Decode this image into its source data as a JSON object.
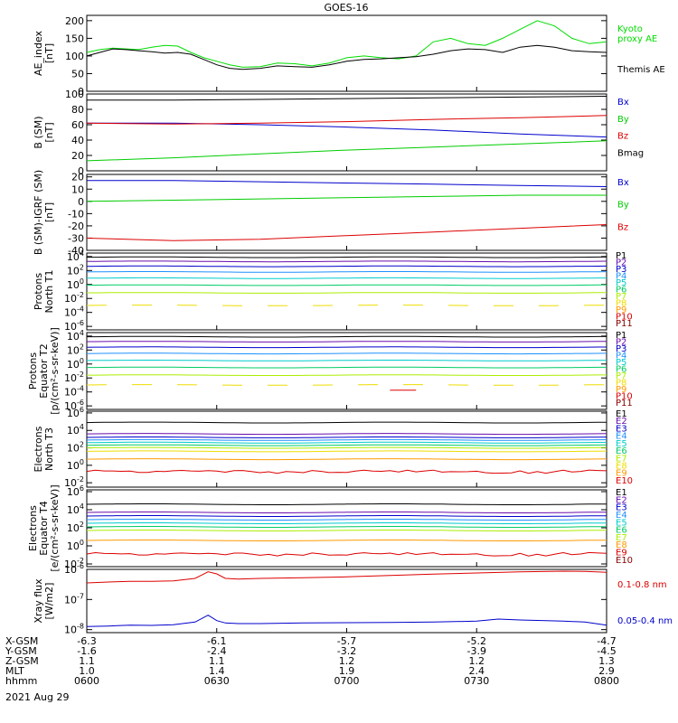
{
  "title": "GOES-16",
  "date_label": "2021 Aug 29",
  "orbit_rows": [
    {
      "name": "X-GSM",
      "values": [
        "-6.3",
        "-6.1",
        "-5.7",
        "-5.2",
        "-4.7"
      ]
    },
    {
      "name": "Y-GSM",
      "values": [
        "-1.6",
        "-2.4",
        "-3.2",
        "-3.9",
        "-4.5"
      ]
    },
    {
      "name": "Z-GSM",
      "values": [
        "1.1",
        "1.1",
        "1.2",
        "1.2",
        "1.3"
      ]
    },
    {
      "name": "MLT",
      "values": [
        "1.0",
        "1.4",
        "1.9",
        "2.4",
        "2.9"
      ]
    },
    {
      "name": "hhmm",
      "values": [
        "0600",
        "0630",
        "0700",
        "0730",
        "0800"
      ]
    }
  ],
  "chart_data": [
    {
      "id": "ae",
      "type": "line",
      "ylabel": "AE_index\n[nT]",
      "y_ticks": [
        "0",
        "50",
        "100",
        "150",
        "200"
      ],
      "ylim": [
        0,
        215
      ],
      "log": false,
      "series": [
        {
          "name": "Kyoto\nproxy AE",
          "color": "#00dd00",
          "x": [
            0,
            3,
            6,
            9,
            12,
            15,
            18,
            21,
            24,
            27,
            30,
            33,
            36,
            40,
            44,
            48,
            52,
            56,
            60,
            64,
            68,
            72,
            76,
            80,
            84,
            88,
            92,
            96,
            100,
            104,
            108,
            112,
            116,
            120
          ],
          "y": [
            110,
            118,
            122,
            120,
            118,
            125,
            130,
            128,
            110,
            95,
            85,
            75,
            68,
            70,
            80,
            78,
            72,
            80,
            95,
            100,
            95,
            92,
            100,
            140,
            150,
            135,
            130,
            150,
            175,
            200,
            185,
            150,
            135,
            140
          ]
        },
        {
          "name": "Themis AE",
          "color": "#000000",
          "x": [
            0,
            3,
            6,
            9,
            12,
            15,
            18,
            21,
            24,
            27,
            30,
            33,
            36,
            40,
            44,
            48,
            52,
            56,
            60,
            64,
            68,
            72,
            76,
            80,
            84,
            88,
            92,
            96,
            100,
            104,
            108,
            112,
            116,
            120
          ],
          "y": [
            100,
            110,
            120,
            118,
            115,
            112,
            108,
            110,
            105,
            90,
            75,
            65,
            62,
            65,
            72,
            70,
            68,
            75,
            85,
            90,
            92,
            95,
            98,
            105,
            115,
            120,
            118,
            110,
            125,
            130,
            125,
            115,
            112,
            110
          ]
        }
      ]
    },
    {
      "id": "bsm",
      "type": "line",
      "ylabel": "B (SM)\n[nT]",
      "y_ticks": [
        "0",
        "20",
        "40",
        "60",
        "80",
        "100"
      ],
      "ylim": [
        0,
        100
      ],
      "log": false,
      "series": [
        {
          "name": "Bx",
          "color": "#0000cc",
          "x": [
            0,
            20,
            40,
            60,
            80,
            100,
            120
          ],
          "y": [
            62,
            62,
            60,
            57,
            53,
            48,
            44
          ]
        },
        {
          "name": "By",
          "color": "#00cc00",
          "x": [
            0,
            20,
            40,
            60,
            80,
            100,
            120
          ],
          "y": [
            13,
            17,
            22,
            27,
            31,
            35,
            39
          ]
        },
        {
          "name": "Bz",
          "color": "#dd0000",
          "x": [
            0,
            20,
            40,
            60,
            80,
            100,
            120
          ],
          "y": [
            62,
            61,
            62,
            64,
            67,
            69,
            72
          ]
        },
        {
          "name": "Bmag",
          "color": "#000000",
          "x": [
            0,
            20,
            40,
            60,
            80,
            100,
            120
          ],
          "y": [
            92,
            92,
            93,
            94,
            95,
            96,
            97
          ]
        }
      ]
    },
    {
      "id": "bigrf",
      "type": "line",
      "ylabel": "B (SM)-IGRF (SM)\n[nT]",
      "y_ticks": [
        "-40",
        "-30",
        "-20",
        "-10",
        "0",
        "10",
        "20"
      ],
      "ylim": [
        -40,
        22
      ],
      "log": false,
      "series": [
        {
          "name": "Bx",
          "color": "#0000cc",
          "x": [
            0,
            20,
            40,
            60,
            80,
            100,
            120
          ],
          "y": [
            17,
            17,
            16,
            15,
            14,
            13,
            12
          ]
        },
        {
          "name": "By",
          "color": "#00cc00",
          "x": [
            0,
            20,
            40,
            60,
            80,
            100,
            120
          ],
          "y": [
            0,
            1,
            2,
            3,
            4,
            5,
            5
          ]
        },
        {
          "name": "Bz",
          "color": "#dd0000",
          "x": [
            0,
            20,
            40,
            60,
            80,
            100,
            120
          ],
          "y": [
            -30,
            -32,
            -31,
            -28,
            -25,
            -22,
            -19
          ]
        }
      ]
    },
    {
      "id": "p1",
      "type": "line",
      "ylabel": "Protons\nNorth T1",
      "log": true,
      "y_ticks": [
        "10^-6",
        "10^-4",
        "10^-2",
        "10^0",
        "10^2",
        "10^4"
      ],
      "ylim": [
        -6.5,
        4.5
      ],
      "series": [
        {
          "name": "P1",
          "color": "#000000",
          "level": 3.9
        },
        {
          "name": "P2",
          "color": "#6a0dad",
          "level": 3.3
        },
        {
          "name": "P3",
          "color": "#0000cc",
          "level": 2.6
        },
        {
          "name": "P4",
          "color": "#1e90ff",
          "level": 1.8
        },
        {
          "name": "P5",
          "color": "#00cccc",
          "level": 0.9
        },
        {
          "name": "P6",
          "color": "#00cc66",
          "level": -0.1
        },
        {
          "name": "P7",
          "color": "#aaee00",
          "level": -1.2
        },
        {
          "name": "P8",
          "color": "#eedd00",
          "level": -3.0,
          "dashed": true
        },
        {
          "name": "P9",
          "color": "#ff9900",
          "level": null
        },
        {
          "name": "P10",
          "color": "#dd0000",
          "level": null
        },
        {
          "name": "P11",
          "color": "#880000",
          "level": null
        }
      ]
    },
    {
      "id": "p2",
      "type": "line",
      "ylabel": "Protons\nEquator T2\n[p/(cm²-s-sr-keV)]",
      "log": true,
      "y_ticks": [
        "10^-6",
        "10^-4",
        "10^-2",
        "10^0",
        "10^2",
        "10^4"
      ],
      "ylim": [
        -6.5,
        4.5
      ],
      "series": [
        {
          "name": "P1",
          "color": "#000000",
          "level": 3.9
        },
        {
          "name": "P2",
          "color": "#6a0dad",
          "level": 3.2
        },
        {
          "name": "P3",
          "color": "#0000cc",
          "level": 2.4
        },
        {
          "name": "P4",
          "color": "#1e90ff",
          "level": 1.5
        },
        {
          "name": "P5",
          "color": "#00cccc",
          "level": 0.5
        },
        {
          "name": "P6",
          "color": "#00cc66",
          "level": -0.5
        },
        {
          "name": "P7",
          "color": "#aaee00",
          "level": -1.6
        },
        {
          "name": "P8",
          "color": "#eedd00",
          "level": -3.0,
          "dashed": true
        },
        {
          "name": "P9",
          "color": "#ff9900",
          "level": null
        },
        {
          "name": "P10",
          "color": "#dd0000",
          "level": -3.8,
          "segment": [
            70,
            76
          ]
        },
        {
          "name": "P11",
          "color": "#880000",
          "level": null
        }
      ]
    },
    {
      "id": "e3",
      "type": "line",
      "ylabel": "Electrons\nNorth T3",
      "log": true,
      "y_ticks": [
        "10^-2",
        "10^0",
        "10^2",
        "10^4",
        "10^6"
      ],
      "ylim": [
        -2.5,
        6.2
      ],
      "series": [
        {
          "name": "E1",
          "color": "#000000",
          "level": 4.9
        },
        {
          "name": "E2",
          "color": "#6a0dad",
          "level": 3.6
        },
        {
          "name": "E3",
          "color": "#0000cc",
          "level": 3.2
        },
        {
          "name": "E4",
          "color": "#1e90ff",
          "level": 2.9
        },
        {
          "name": "E5",
          "color": "#00cccc",
          "level": 2.6
        },
        {
          "name": "E6",
          "color": "#00cc66",
          "level": 2.3
        },
        {
          "name": "E7",
          "color": "#aaee00",
          "level": 2.0
        },
        {
          "name": "E8",
          "color": "#eedd00",
          "level": 1.6
        },
        {
          "name": "E9",
          "color": "#ff9900",
          "level": 0.7
        },
        {
          "name": "E10",
          "color": "#dd0000",
          "level": -0.7,
          "noisy": true
        }
      ]
    },
    {
      "id": "e4",
      "type": "line",
      "ylabel": "Electrons\nEquator T4\n[e/(cm²-s-sr-keV)]",
      "log": true,
      "y_ticks": [
        "10^-2",
        "10^0",
        "10^2",
        "10^4",
        "10^6"
      ],
      "ylim": [
        -2.3,
        6.2
      ],
      "series": [
        {
          "name": "E1",
          "color": "#000000",
          "level": 4.6
        },
        {
          "name": "E2",
          "color": "#6a0dad",
          "level": 3.7
        },
        {
          "name": "E3",
          "color": "#0000cc",
          "level": 3.3
        },
        {
          "name": "E4",
          "color": "#1e90ff",
          "level": 2.9
        },
        {
          "name": "E5",
          "color": "#00cccc",
          "level": 2.5
        },
        {
          "name": "E6",
          "color": "#00cc66",
          "level": 2.1
        },
        {
          "name": "E7",
          "color": "#aaee00",
          "level": 1.7
        },
        {
          "name": "E8",
          "color": "#ff9900",
          "level": 0.6
        },
        {
          "name": "E9",
          "color": "#dd0000",
          "level": -0.9,
          "noisy": true
        },
        {
          "name": "E10",
          "color": "#880000",
          "level": null
        }
      ]
    },
    {
      "id": "xray",
      "type": "line",
      "ylabel": "Xray flux\n[W/m2]",
      "log": true,
      "y_ticks": [
        "10^-8",
        "10^-7",
        "10^-6"
      ],
      "ylim": [
        -8.1,
        -6.0
      ],
      "series": [
        {
          "name": "0.1-0.8 nm",
          "color": "#dd0000",
          "x": [
            0,
            5,
            10,
            15,
            20,
            25,
            28,
            30,
            32,
            35,
            40,
            50,
            60,
            70,
            80,
            90,
            100,
            110,
            115,
            120
          ],
          "y": [
            -6.45,
            -6.42,
            -6.4,
            -6.4,
            -6.38,
            -6.3,
            -6.08,
            -6.15,
            -6.3,
            -6.32,
            -6.3,
            -6.28,
            -6.25,
            -6.2,
            -6.16,
            -6.12,
            -6.08,
            -6.06,
            -6.07,
            -6.1
          ]
        },
        {
          "name": "0.05-0.4 nm",
          "color": "#0000cc",
          "x": [
            0,
            5,
            10,
            15,
            20,
            25,
            28,
            30,
            32,
            35,
            40,
            50,
            60,
            70,
            80,
            90,
            95,
            100,
            110,
            115,
            120
          ],
          "y": [
            -7.9,
            -7.88,
            -7.85,
            -7.86,
            -7.84,
            -7.75,
            -7.52,
            -7.7,
            -7.78,
            -7.8,
            -7.8,
            -7.78,
            -7.77,
            -7.76,
            -7.75,
            -7.72,
            -7.65,
            -7.68,
            -7.72,
            -7.75,
            -7.85
          ]
        }
      ]
    }
  ]
}
